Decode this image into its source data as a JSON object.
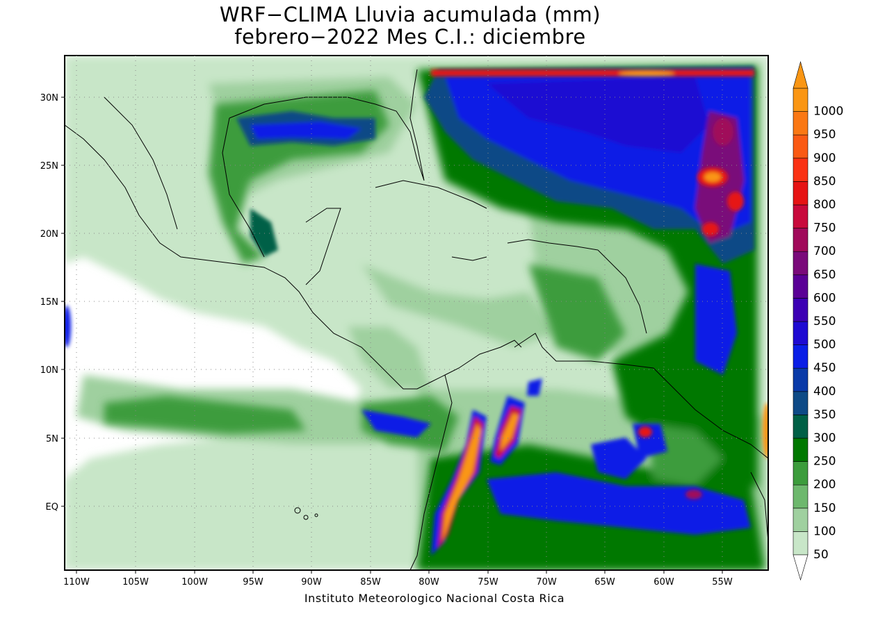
{
  "map": {
    "title": "WRF−CLIMA Lluvia acumulada (mm)",
    "subtitle": "febrero−2022 Mes C.I.: diciembre",
    "credit": "Instituto Meteorologico Nacional Costa Rica",
    "lat_labels": [
      "30N",
      "25N",
      "20N",
      "15N",
      "10N",
      "5N",
      "EQ"
    ],
    "lon_labels": [
      "110W",
      "105W",
      "100W",
      "95W",
      "90W",
      "85W",
      "80W",
      "75W",
      "70W",
      "65W",
      "60W",
      "55W"
    ],
    "colorbar": {
      "labels": [
        "50",
        "100",
        "150",
        "200",
        "250",
        "300",
        "350",
        "400",
        "450",
        "500",
        "550",
        "600",
        "650",
        "700",
        "750",
        "800",
        "850",
        "900",
        "950",
        "1000"
      ],
      "colors": [
        "#c8e6c8",
        "#9fd09f",
        "#6db86d",
        "#3c9c3c",
        "#007800",
        "#006046",
        "#0e4a86",
        "#0a3aa8",
        "#0a1ee6",
        "#1e0ad2",
        "#3c00b4",
        "#5a0096",
        "#7a0a7a",
        "#a00a5a",
        "#c80a3c",
        "#e61414",
        "#fa3214",
        "#fa5a14",
        "#fa7814",
        "#fa9614"
      ]
    }
  }
}
